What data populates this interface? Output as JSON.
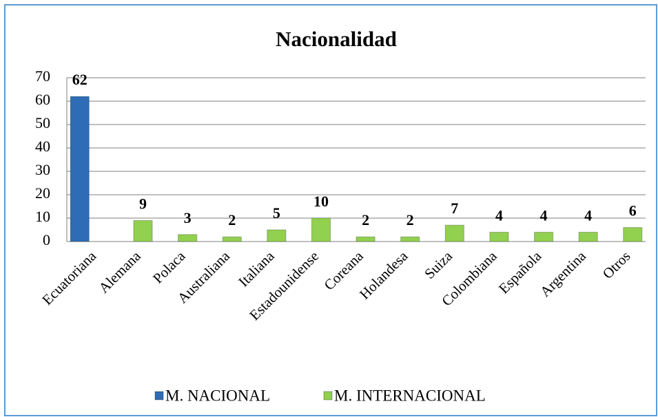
{
  "chart_data": {
    "type": "bar",
    "title": "Nacionalidad",
    "categories": [
      "Ecuatoriana",
      "Alemana",
      "Polaca",
      "Australiana",
      "Italiana",
      "Estadounidense",
      "Coreana",
      "Holandesa",
      "Suiza",
      "Colombiana",
      "Española",
      "Argentina",
      "Otros"
    ],
    "series": [
      {
        "name": "M. NACIONAL",
        "color": "#2e6db5",
        "values": [
          62,
          null,
          null,
          null,
          null,
          null,
          null,
          null,
          null,
          null,
          null,
          null,
          null
        ]
      },
      {
        "name": "M. INTERNACIONAL",
        "color": "#92d050",
        "values": [
          null,
          9,
          3,
          2,
          5,
          10,
          2,
          2,
          7,
          4,
          4,
          4,
          6
        ]
      }
    ],
    "ylim": [
      0,
      70
    ],
    "yticks": [
      0,
      10,
      20,
      30,
      40,
      50,
      60,
      70
    ],
    "grid": true,
    "legend": "bottom"
  }
}
